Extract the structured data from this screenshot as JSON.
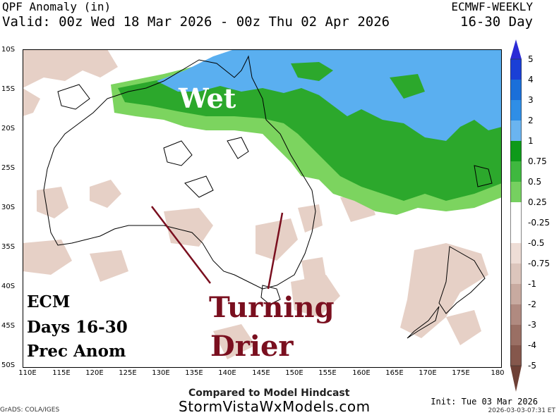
{
  "header": {
    "title": "QPF Anomaly (in)",
    "valid": "Valid: 00z Wed 18 Mar 2026 - 00z Thu 02 Apr 2026",
    "model": "ECMWF-WEEKLY",
    "period": "16-30 Day"
  },
  "map": {
    "lat_labels": [
      "10S",
      "15S",
      "20S",
      "25S",
      "30S",
      "35S",
      "40S",
      "45S",
      "50S"
    ],
    "lon_labels": [
      "110E",
      "115E",
      "120E",
      "125E",
      "130E",
      "135E",
      "140E",
      "145E",
      "150E",
      "155E",
      "160E",
      "165E",
      "170E",
      "175E",
      "180"
    ],
    "annotations": {
      "wet": "Wet",
      "drier_line1": "Turning",
      "drier_line2": "Drier",
      "ecm_line1": "ECM",
      "ecm_line2": "Days 16-30",
      "ecm_line3": "Prec Anom"
    },
    "colors": {
      "wet_green": "#22aa22",
      "mid_green": "#55cc44",
      "light_green": "#88dd55",
      "blue": "#55a8ee",
      "dry_pink": "#e8d2c8",
      "annotation_red": "#7a0f1f"
    }
  },
  "colorbar": {
    "labels": [
      "5",
      "4",
      "3",
      "2",
      "1",
      "0.75",
      "0.5",
      "0.25",
      "-0.25",
      "-0.5",
      "-0.75",
      "-1",
      "-2",
      "-3",
      "-4",
      "-5"
    ],
    "colors": [
      "#2b2bd6",
      "#1a6fd9",
      "#2f8ee6",
      "#6ab4f0",
      "#0e9a1a",
      "#3fb83f",
      "#76d060",
      "#ffffff",
      "#ffffff",
      "#eeddd6",
      "#dcc5bc",
      "#c8aaa0",
      "#b08a80",
      "#9a6f64",
      "#85574c",
      "#6e4036"
    ]
  },
  "footer": {
    "compared": "Compared to Model Hindcast",
    "site": "StormVistaWxModels.com",
    "init": "Init: Tue 03 Mar 2026",
    "grads": "GrADS: COLA/IGES",
    "timestamp": "2026-03-03-07:31 ET"
  }
}
